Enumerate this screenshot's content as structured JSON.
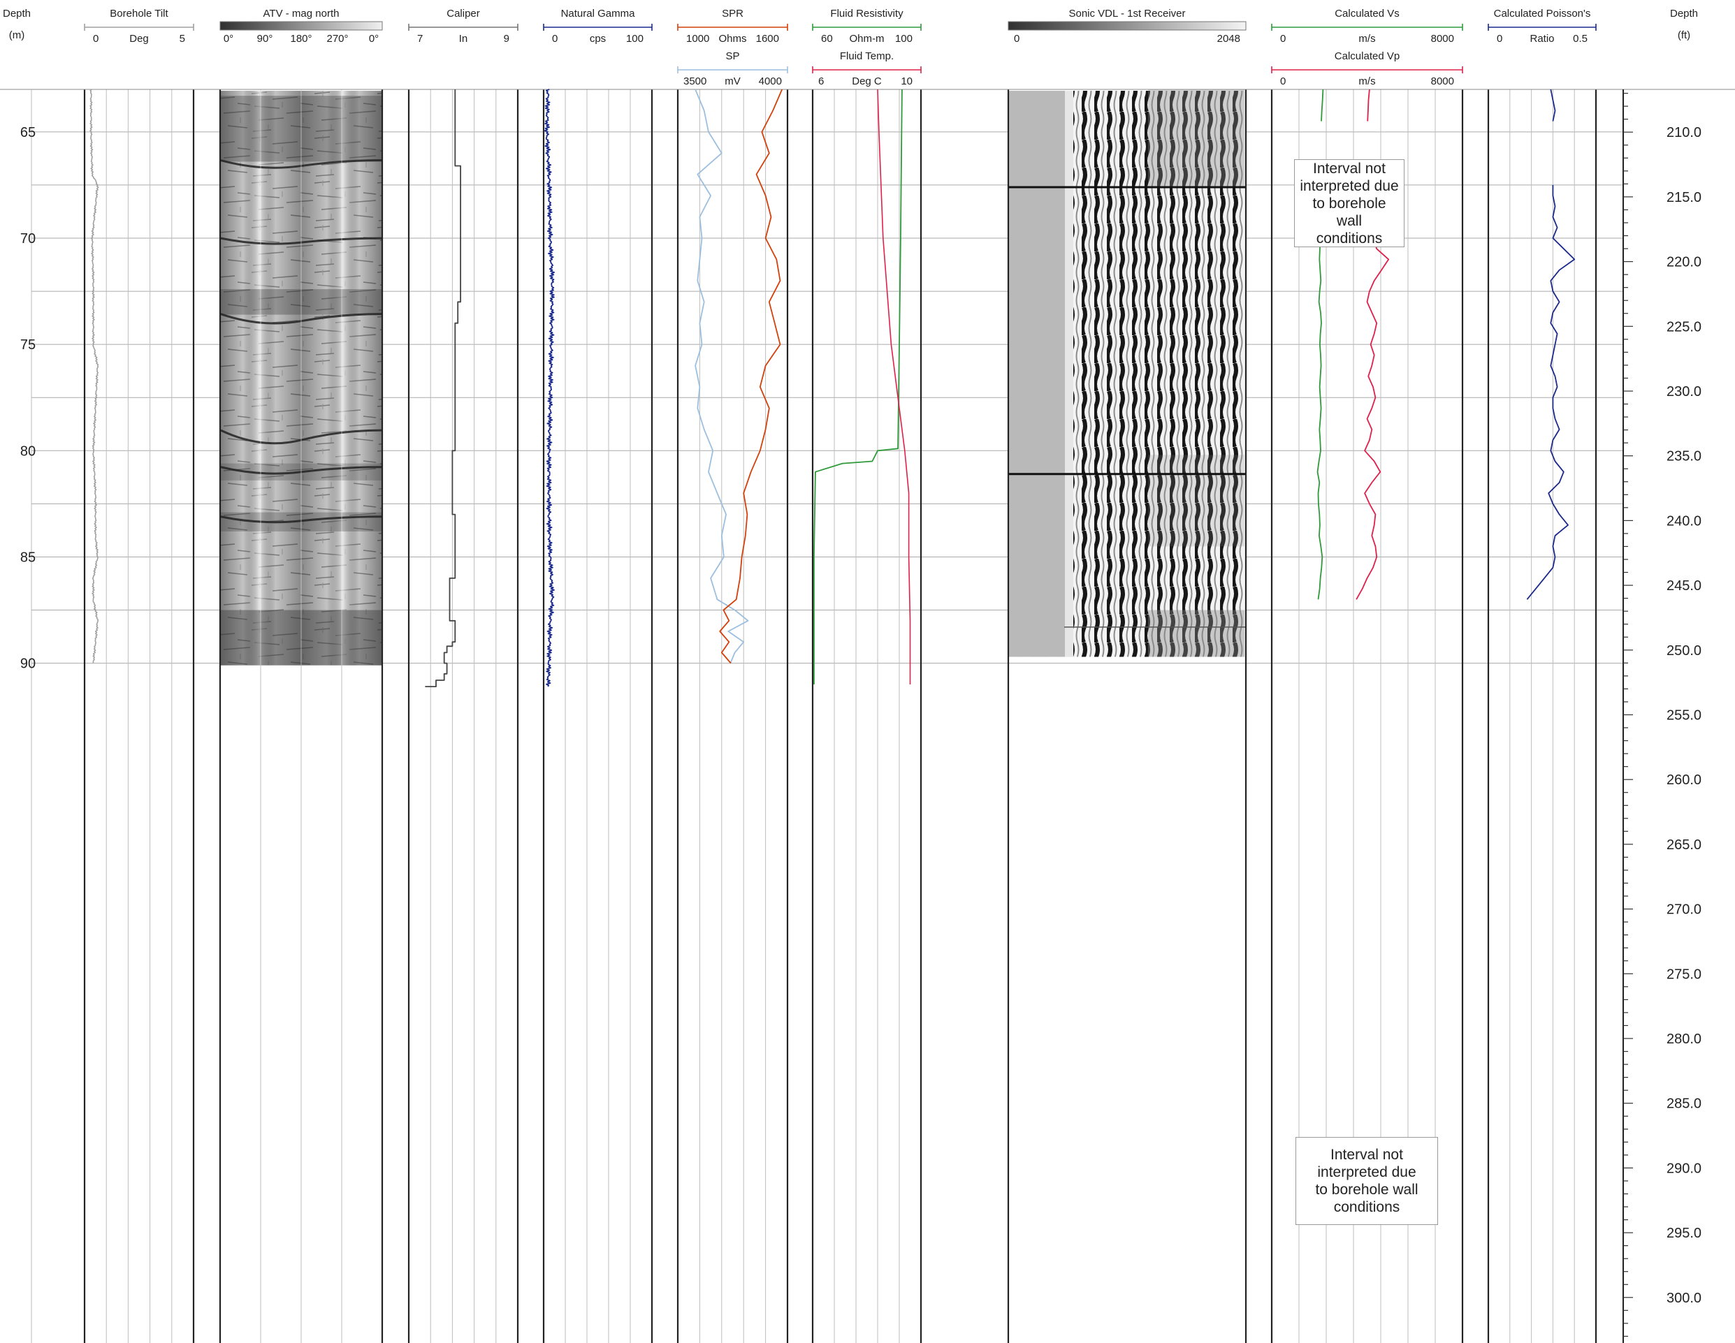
{
  "depth_m": {
    "title": "Depth",
    "unit": "(m)",
    "ticks": [
      65,
      70,
      75,
      80,
      85,
      90
    ]
  },
  "depth_ft": {
    "title": "Depth",
    "unit": "(ft)",
    "ticks": [
      "210.0",
      "215.0",
      "220.0",
      "225.0",
      "230.0",
      "235.0",
      "240.0",
      "245.0",
      "250.0",
      "255.0",
      "260.0",
      "265.0",
      "270.0",
      "275.0",
      "280.0",
      "285.0",
      "290.0",
      "295.0",
      "300.0"
    ]
  },
  "headers": {
    "tilt": {
      "title": "Borehole Tilt",
      "min": "0",
      "unit": "Deg",
      "max": "5"
    },
    "atv": {
      "title": "ATV - mag north",
      "labels": [
        "0°",
        "90°",
        "180°",
        "270°",
        "0°"
      ]
    },
    "caliper": {
      "title": "Caliper",
      "min": "7",
      "unit": "In",
      "max": "9"
    },
    "gamma": {
      "title": "Natural Gamma",
      "min": "0",
      "unit": "cps",
      "max": "100"
    },
    "spr": {
      "title": "SPR",
      "min": "1000",
      "unit": "Ohms",
      "max": "1600"
    },
    "sp": {
      "title": "SP",
      "min": "3500",
      "unit": "mV",
      "max": "4000"
    },
    "fres": {
      "title": "Fluid Resistivity",
      "min": "60",
      "unit": "Ohm-m",
      "max": "100"
    },
    "ftemp": {
      "title": "Fluid Temp.",
      "min": "6",
      "unit": "Deg C",
      "max": "10"
    },
    "vdl": {
      "title": "Sonic VDL - 1st Receiver",
      "min": "0",
      "max": "2048"
    },
    "vs": {
      "title": "Calculated Vs",
      "min": "0",
      "unit": "m/s",
      "max": "8000"
    },
    "vp": {
      "title": "Calculated Vp",
      "min": "0",
      "unit": "m/s",
      "max": "8000"
    },
    "poisson": {
      "title": "Calculated Poisson's",
      "min": "0",
      "unit": "Ratio",
      "max": "0.5"
    }
  },
  "notes": {
    "upper": "Interval not\ninterpreted due\nto borehole wall\nconditions",
    "lower": "Interval not\ninterpreted due\nto borehole wall\nconditions"
  },
  "colors": {
    "tilt": "#a0a0a0",
    "caliper": "#444444",
    "gamma": "#1a2a8c",
    "spr": "#d4400a",
    "sp": "#9cbfe0",
    "fres": "#2e9a3a",
    "ftemp": "#e0204a",
    "vs": "#2e9a3a",
    "vp": "#e0204a",
    "poisson": "#1a2a8c"
  },
  "chart_data": {
    "type": "line",
    "depth_range_m": [
      63.0,
      92.5
    ],
    "depth_range_ft": [
      206.7,
      303.5
    ],
    "series": [
      {
        "name": "Borehole Tilt",
        "unit": "Deg",
        "xlim": [
          0,
          5
        ],
        "depth": [
          63,
          65,
          67,
          67.5,
          70,
          72,
          75,
          76,
          78,
          80,
          82,
          84,
          85,
          86,
          87,
          88,
          89,
          90
        ],
        "values": [
          0.3,
          0.3,
          0.35,
          0.6,
          0.35,
          0.4,
          0.4,
          0.6,
          0.5,
          0.4,
          0.5,
          0.5,
          0.6,
          0.4,
          0.4,
          0.6,
          0.5,
          0.4
        ]
      },
      {
        "name": "Caliper",
        "unit": "In",
        "xlim": [
          7,
          9
        ],
        "depth": [
          63,
          66.4,
          66.6,
          72,
          73,
          74,
          80,
          83,
          86,
          87.5,
          88,
          89,
          89.2,
          89.5,
          90,
          90.5,
          90.8,
          91.1
        ],
        "values": [
          7.85,
          7.85,
          7.95,
          7.95,
          7.9,
          7.85,
          7.8,
          7.85,
          7.75,
          7.75,
          7.85,
          7.8,
          7.7,
          7.65,
          7.7,
          7.65,
          7.5,
          7.3
        ]
      },
      {
        "name": "Natural Gamma",
        "unit": "cps",
        "xlim": [
          0,
          100
        ],
        "depth": [
          63,
          65,
          67,
          70,
          72,
          75,
          78,
          80,
          83,
          85,
          87,
          88,
          90,
          91.1
        ],
        "values": [
          4,
          3,
          5,
          6,
          8,
          7,
          6,
          5,
          5,
          6,
          8,
          6,
          5,
          4
        ]
      },
      {
        "name": "SPR",
        "unit": "Ohms",
        "xlim": [
          1000,
          1600
        ],
        "depth": [
          63,
          64,
          65,
          66,
          67,
          68,
          69,
          70,
          71,
          72,
          73,
          74,
          75,
          76,
          77,
          78,
          79,
          80,
          81,
          82,
          83,
          84,
          85,
          86,
          87,
          87.5,
          88,
          88.5,
          89,
          89.5,
          90
        ],
        "values": [
          1570,
          1520,
          1460,
          1500,
          1430,
          1480,
          1510,
          1480,
          1540,
          1560,
          1500,
          1530,
          1560,
          1480,
          1450,
          1500,
          1480,
          1450,
          1400,
          1360,
          1380,
          1370,
          1350,
          1340,
          1320,
          1250,
          1280,
          1230,
          1280,
          1240,
          1290
        ]
      },
      {
        "name": "SP",
        "unit": "mV",
        "xlim": [
          3500,
          4000
        ],
        "depth": [
          63,
          64,
          65,
          66,
          67,
          68,
          69,
          70,
          71,
          72,
          73,
          74,
          75,
          76,
          77,
          78,
          79,
          80,
          81,
          82,
          83,
          84,
          85,
          86,
          87,
          87.5,
          88,
          88.5,
          89,
          89.5,
          90
        ],
        "values": [
          3580,
          3620,
          3640,
          3700,
          3590,
          3650,
          3600,
          3610,
          3600,
          3590,
          3620,
          3600,
          3610,
          3580,
          3600,
          3590,
          3620,
          3660,
          3640,
          3680,
          3720,
          3700,
          3710,
          3650,
          3680,
          3760,
          3820,
          3730,
          3800,
          3760,
          3740
        ]
      },
      {
        "name": "Fluid Resistivity",
        "unit": "Ohm-m",
        "xlim": [
          60,
          100
        ],
        "depth": [
          63,
          70,
          75,
          79.9,
          80.0,
          80.5,
          80.6,
          81,
          85,
          91.0
        ],
        "values": [
          93,
          92.5,
          92,
          91.5,
          84,
          82,
          71,
          61,
          60.5,
          60.5
        ]
      },
      {
        "name": "Fluid Temp.",
        "unit": "Deg C",
        "xlim": [
          6,
          10
        ],
        "depth": [
          63,
          65,
          70,
          75,
          78,
          80,
          82,
          85,
          88,
          91.0
        ],
        "values": [
          8.4,
          8.45,
          8.6,
          8.9,
          9.2,
          9.4,
          9.55,
          9.55,
          9.6,
          9.6
        ]
      },
      {
        "name": "Calculated Vs",
        "unit": "m/s",
        "xlim": [
          0,
          8000
        ],
        "depth": [
          63,
          63.5,
          64,
          64.5,
          65,
          65.5,
          66,
          66.5,
          67,
          67.5,
          68,
          68.5,
          69,
          69.5,
          70,
          70.5,
          71,
          71.5,
          72,
          72.5,
          73,
          73.5,
          74,
          74.5,
          75,
          75.5,
          76,
          76.5,
          77,
          77.5,
          78,
          78.5,
          79,
          79.5,
          80,
          80.5,
          81,
          81.5,
          82,
          82.5,
          83,
          83.5,
          84,
          84.5,
          85,
          85.5,
          86,
          86.5,
          87
        ],
        "values": [
          2150,
          2130,
          2100,
          2080,
          null,
          null,
          null,
          null,
          2050,
          2040,
          2050,
          2060,
          2030,
          2040,
          2050,
          2020,
          2000,
          2030,
          2060,
          2010,
          1980,
          2050,
          2080,
          2040,
          2020,
          2050,
          2070,
          2040,
          2010,
          2040,
          2070,
          2040,
          2000,
          2030,
          2050,
          1980,
          1920,
          2000,
          1950,
          1960,
          2000,
          2020,
          1990,
          2060,
          2120,
          2090,
          2040,
          2010,
          1950
        ]
      },
      {
        "name": "Calculated Vp",
        "unit": "m/s",
        "xlim": [
          0,
          8000
        ],
        "depth": [
          63,
          63.5,
          64,
          64.5,
          65,
          65.5,
          66,
          66.5,
          67,
          67.5,
          68,
          68.5,
          69,
          69.5,
          70,
          70.5,
          71,
          71.5,
          72,
          72.5,
          73,
          73.5,
          74,
          74.5,
          75,
          75.5,
          76,
          76.5,
          77,
          77.5,
          78,
          78.5,
          79,
          79.5,
          80,
          80.5,
          81,
          81.5,
          82,
          82.5,
          83,
          83.5,
          84,
          84.5,
          85,
          85.5,
          86,
          86.5,
          87
        ],
        "values": [
          4100,
          4060,
          4040,
          4020,
          null,
          null,
          null,
          null,
          4100,
          4120,
          4140,
          4150,
          4100,
          4140,
          4250,
          4400,
          4900,
          4600,
          4300,
          4100,
          4000,
          4200,
          4400,
          4300,
          4150,
          4300,
          4200,
          4050,
          4250,
          4350,
          4200,
          4000,
          4200,
          4100,
          3900,
          4300,
          4550,
          4200,
          3900,
          4100,
          4350,
          4300,
          4200,
          4350,
          4400,
          4250,
          4000,
          3800,
          3550
        ]
      },
      {
        "name": "Calculated Poisson's",
        "unit": "Ratio",
        "xlim": [
          0,
          0.5
        ],
        "depth": [
          63,
          63.5,
          64,
          64.5,
          65,
          67,
          67.5,
          68,
          68.5,
          69,
          69.5,
          70,
          70.5,
          71,
          71.5,
          72,
          72.5,
          73,
          73.5,
          74,
          74.5,
          75,
          75.5,
          76,
          76.5,
          77,
          77.5,
          78,
          78.5,
          79,
          79.5,
          80,
          80.5,
          81,
          81.5,
          82,
          82.5,
          83,
          83.5,
          84,
          84.5,
          85,
          85.5,
          86,
          86.5,
          87
        ],
        "values": [
          0.29,
          0.3,
          0.31,
          0.3,
          null,
          null,
          0.3,
          0.3,
          0.31,
          0.3,
          0.32,
          0.3,
          0.35,
          0.4,
          0.33,
          0.29,
          0.3,
          0.33,
          0.3,
          0.29,
          0.32,
          0.31,
          0.3,
          0.29,
          0.31,
          0.32,
          0.3,
          0.3,
          0.31,
          0.33,
          0.3,
          0.29,
          0.31,
          0.35,
          0.33,
          0.28,
          0.3,
          0.33,
          0.37,
          0.31,
          0.3,
          0.31,
          0.3,
          0.26,
          0.22,
          0.18
        ]
      }
    ]
  }
}
